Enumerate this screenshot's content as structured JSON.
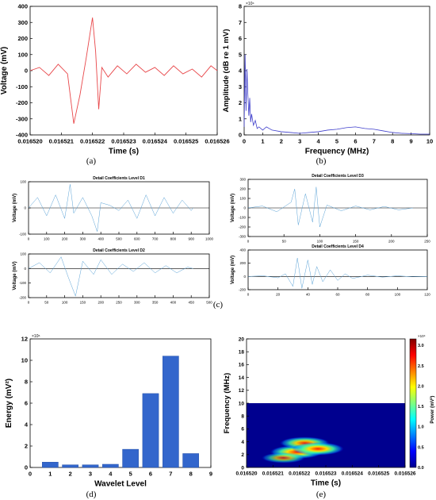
{
  "panel_labels": {
    "a": "(a)",
    "b": "(b)",
    "c": "(c)",
    "d": "(d)",
    "e": "(e)"
  },
  "colors": {
    "red_trace": "#e8474a",
    "blue_trace": "#3f3fcc",
    "detail_trace": "#5aa2d6",
    "bar": "#3366cc"
  },
  "chart_data": [
    {
      "id": "a",
      "type": "line",
      "xlabel": "Time (s)",
      "ylabel": "Voltage (mV)",
      "xlim": [
        0.01652,
        0.016526
      ],
      "ylim": [
        -400,
        400
      ],
      "xticks": [
        "0.016520",
        "0.016521",
        "0.016522",
        "0.016523",
        "0.016524",
        "0.016525",
        "0.016526"
      ],
      "yticks": [
        "-400",
        "-300",
        "-200",
        "-100",
        "0",
        "100",
        "200",
        "300",
        "400"
      ],
      "series": [
        {
          "color": "#e8474a",
          "x": [
            0.01652,
            0.0165203,
            0.0165206,
            0.0165209,
            0.0165212,
            0.0165214,
            0.0165216,
            0.0165218,
            0.016522,
            0.0165221,
            0.0165222,
            0.0165223,
            0.0165225,
            0.0165228,
            0.0165231,
            0.0165234,
            0.0165237,
            0.016524,
            0.0165243,
            0.0165246,
            0.0165249,
            0.0165252,
            0.0165255,
            0.0165258,
            0.016526
          ],
          "y": [
            0,
            20,
            -30,
            40,
            -20,
            -330,
            -150,
            80,
            330,
            120,
            -240,
            20,
            -40,
            30,
            -20,
            40,
            -10,
            20,
            -30,
            30,
            -20,
            10,
            -40,
            30,
            0
          ]
        }
      ]
    },
    {
      "id": "b",
      "type": "line",
      "xlabel": "Frequency (MHz)",
      "ylabel": "Amplitude (dB re 1 mV)",
      "exponent": "×10⁴",
      "xlim": [
        0,
        10
      ],
      "ylim": [
        0,
        8
      ],
      "xticks": [
        "0",
        "1",
        "2",
        "3",
        "4",
        "5",
        "6",
        "7",
        "8",
        "9",
        "10"
      ],
      "yticks": [
        "0",
        "1",
        "2",
        "3",
        "4",
        "5",
        "6",
        "7",
        "8"
      ],
      "series": [
        {
          "color": "#3f3fcc",
          "x": [
            0,
            0.05,
            0.1,
            0.15,
            0.2,
            0.25,
            0.3,
            0.35,
            0.4,
            0.5,
            0.6,
            0.7,
            0.8,
            1,
            1.2,
            1.5,
            2,
            2.5,
            3,
            3.5,
            4,
            4.5,
            5,
            5.5,
            6,
            6.5,
            7,
            7.5,
            8,
            8.5,
            9,
            9.5,
            10
          ],
          "y": [
            0.5,
            5,
            1.5,
            4.1,
            2.5,
            1.2,
            2.3,
            0.8,
            1.3,
            0.6,
            0.9,
            0.4,
            0.5,
            0.3,
            0.5,
            0.3,
            0.2,
            0.15,
            0.1,
            0.15,
            0.2,
            0.3,
            0.35,
            0.45,
            0.5,
            0.4,
            0.35,
            0.25,
            0.15,
            0.1,
            0.08,
            0.05,
            0.05
          ]
        }
      ]
    },
    {
      "id": "c-d1",
      "type": "line",
      "title": "Detail Coefficients Level D1",
      "ylabel": "Voltage (mV)",
      "xlim": [
        0,
        1000
      ],
      "ylim": [
        -100,
        100
      ],
      "xticks": [
        "0",
        "100",
        "200",
        "300",
        "400",
        "500",
        "600",
        "700",
        "800",
        "900",
        "1000"
      ],
      "yticks": [
        "-100",
        "0",
        "100"
      ],
      "series": [
        {
          "color": "#5aa2d6",
          "x": [
            0,
            50,
            100,
            150,
            200,
            230,
            250,
            300,
            350,
            380,
            400,
            450,
            500,
            550,
            600,
            650,
            700,
            750,
            800,
            850,
            900,
            910
          ],
          "y": [
            0,
            40,
            -30,
            50,
            -40,
            90,
            -20,
            40,
            -30,
            -90,
            20,
            10,
            -10,
            30,
            -40,
            50,
            -30,
            40,
            -20,
            30,
            -10,
            0
          ]
        }
      ]
    },
    {
      "id": "c-d3",
      "type": "line",
      "title": "Detail Coefficients Level D3",
      "ylabel": "Voltage (mV)",
      "xlim": [
        0,
        250
      ],
      "ylim": [
        -300,
        300
      ],
      "xticks": [
        "0",
        "50",
        "100",
        "150",
        "200",
        "250"
      ],
      "yticks": [
        "-300",
        "-200",
        "-100",
        "0",
        "100",
        "200",
        "300"
      ],
      "series": [
        {
          "color": "#5aa2d6",
          "x": [
            0,
            20,
            40,
            60,
            65,
            70,
            80,
            90,
            95,
            100,
            110,
            130,
            150,
            170,
            190,
            210,
            230
          ],
          "y": [
            0,
            20,
            -40,
            60,
            200,
            -180,
            150,
            -150,
            220,
            -200,
            30,
            -30,
            20,
            -20,
            15,
            -20,
            0
          ]
        }
      ]
    },
    {
      "id": "c-d2",
      "type": "line",
      "title": "Detail Coefficients Level D2",
      "ylabel": "Voltage (mV)",
      "xlim": [
        0,
        500
      ],
      "ylim": [
        -200,
        100
      ],
      "xticks": [
        "0",
        "50",
        "100",
        "150",
        "200",
        "250",
        "300",
        "350",
        "400",
        "450",
        "500"
      ],
      "yticks": [
        "-200",
        "-100",
        "0",
        "100"
      ],
      "series": [
        {
          "color": "#5aa2d6",
          "x": [
            0,
            30,
            60,
            90,
            110,
            130,
            150,
            180,
            200,
            230,
            260,
            290,
            320,
            350,
            380,
            410,
            440,
            455
          ],
          "y": [
            0,
            40,
            -30,
            80,
            -60,
            -190,
            50,
            -40,
            60,
            -40,
            30,
            -20,
            40,
            -30,
            20,
            -30,
            10,
            0
          ]
        }
      ]
    },
    {
      "id": "c-d4",
      "type": "line",
      "title": "Detail Coefficients Level D4",
      "ylabel": "Voltage (mV)",
      "xlim": [
        0,
        120
      ],
      "ylim": [
        -200,
        400
      ],
      "xticks": [
        "0",
        "20",
        "40",
        "60",
        "80",
        "100",
        "120"
      ],
      "yticks": [
        "-200",
        "0",
        "200",
        "400"
      ],
      "series": [
        {
          "color": "#5aa2d6",
          "x": [
            0,
            10,
            20,
            25,
            30,
            33,
            36,
            40,
            43,
            46,
            50,
            55,
            60,
            65,
            70,
            80,
            90,
            100,
            110,
            120
          ],
          "y": [
            0,
            10,
            -20,
            40,
            -150,
            280,
            -180,
            250,
            -120,
            150,
            -80,
            100,
            -60,
            40,
            -30,
            20,
            -10,
            10,
            -5,
            0
          ]
        }
      ]
    },
    {
      "id": "d",
      "type": "bar",
      "xlabel": "Wavelet Level",
      "ylabel": "Energy (mV²)",
      "exponent": "×10⁶",
      "xlim": [
        0,
        9
      ],
      "ylim": [
        0,
        12
      ],
      "xticks": [
        "0",
        "1",
        "2",
        "3",
        "4",
        "5",
        "6",
        "7",
        "8",
        "9"
      ],
      "yticks": [
        "0",
        "2",
        "4",
        "6",
        "8",
        "10",
        "12"
      ],
      "categories": [
        "1",
        "2",
        "3",
        "4",
        "5",
        "6",
        "7",
        "8"
      ],
      "values": [
        0.5,
        0.25,
        0.25,
        0.3,
        1.7,
        6.9,
        10.4,
        1.3
      ]
    },
    {
      "id": "e",
      "type": "heatmap",
      "xlabel": "Time (s)",
      "ylabel": "Frequency (MHz)",
      "colorbar_label": "Power (mV²)",
      "colorbar_exponent": "×10⁴",
      "colorbar_ticks": [
        "0.0",
        "0.5",
        "1.0",
        "1.5",
        "2.0",
        "2.5",
        "3.0"
      ],
      "xlim": [
        0.01652,
        0.016526
      ],
      "ylim": [
        0,
        20
      ],
      "freq_max_mhz": 10,
      "xticks": [
        "0.016520",
        "0.016521",
        "0.016522",
        "0.016523",
        "0.016524",
        "0.016525",
        "0.016526"
      ],
      "yticks": [
        "0",
        "2",
        "4",
        "6",
        "8",
        "10",
        "12",
        "14",
        "16",
        "18",
        "20"
      ],
      "blobs": [
        {
          "t": 0.0165219,
          "f": 2.4,
          "power": 3.0
        },
        {
          "t": 0.0165222,
          "f": 3.8,
          "power": 2.4
        },
        {
          "t": 0.0165227,
          "f": 2.9,
          "power": 2.7
        },
        {
          "t": 0.0165214,
          "f": 1.5,
          "power": 1.4
        }
      ]
    }
  ]
}
